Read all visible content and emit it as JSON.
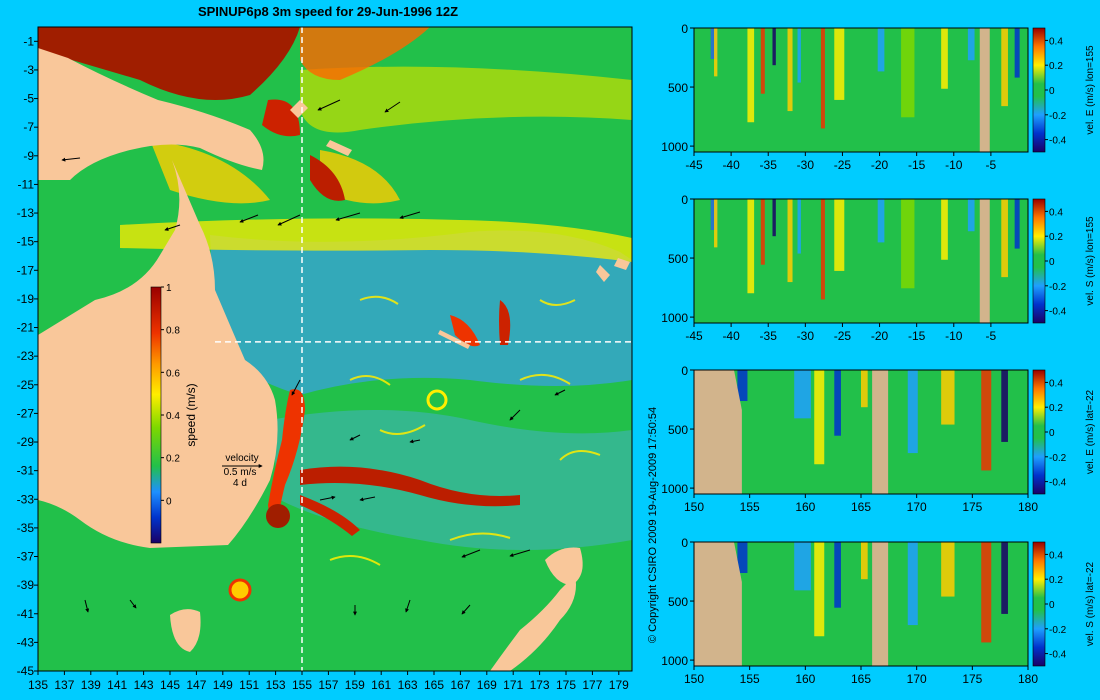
{
  "title": "SPINUP6p8 3m speed for 29-Jun-1996 12Z",
  "copyright": "© Copyright CSIRO 2009  19-Aug-2009 17:50:54",
  "colors": {
    "background": "#00ccff",
    "land": "#f9c79a",
    "mask": "#d2b48c",
    "ocean_base": "#22c04a",
    "strong_current": "#a01e00"
  },
  "map": {
    "x_ticks": [
      "135",
      "137",
      "139",
      "141",
      "143",
      "145",
      "147",
      "149",
      "151",
      "153",
      "155",
      "157",
      "159",
      "161",
      "163",
      "165",
      "167",
      "169",
      "171",
      "173",
      "175",
      "177",
      "179"
    ],
    "y_ticks": [
      "-1",
      "-3",
      "-5",
      "-7",
      "-9",
      "-11",
      "-13",
      "-15",
      "-17",
      "-19",
      "-21",
      "-23",
      "-25",
      "-27",
      "-29",
      "-31",
      "-33",
      "-35",
      "-37",
      "-39",
      "-41",
      "-43",
      "-45"
    ],
    "lon_range": [
      135,
      180
    ],
    "lat_range": [
      -45,
      0
    ],
    "section_lon": 155,
    "section_lat": -22,
    "colorbar": {
      "label": "speed (m/s)",
      "ticks": [
        "1",
        "0.8",
        "0.6",
        "0.4",
        "0.2",
        "0"
      ],
      "range": [
        -0.2,
        1
      ]
    },
    "velocity_key": {
      "title": "velocity",
      "speed": "0.5 m/s",
      "days": "4 d"
    }
  },
  "panels": [
    {
      "id": "lon155-east",
      "label": "vel. E (m/s) lon=155",
      "x_ticks": [
        "-45",
        "-40",
        "-35",
        "-30",
        "-25",
        "-20",
        "-15",
        "-10",
        "-5"
      ],
      "x_range": [
        -45,
        0
      ],
      "y_ticks": [
        "0",
        "500",
        "1000"
      ],
      "y_range": [
        0,
        1050
      ],
      "cb_ticks": [
        "0.4",
        "0.2",
        "0",
        "-0.2",
        "-0.4"
      ]
    },
    {
      "id": "lon155-south",
      "label": "vel. S (m/s) lon=155",
      "x_ticks": [
        "-45",
        "-40",
        "-35",
        "-30",
        "-25",
        "-20",
        "-15",
        "-10",
        "-5"
      ],
      "x_range": [
        -45,
        0
      ],
      "y_ticks": [
        "0",
        "500",
        "1000"
      ],
      "y_range": [
        0,
        1050
      ],
      "cb_ticks": [
        "0.4",
        "0.2",
        "0",
        "-0.2",
        "-0.4"
      ]
    },
    {
      "id": "lat-22-east",
      "label": "vel. E (m/s) lat=-22",
      "x_ticks": [
        "150",
        "155",
        "160",
        "165",
        "170",
        "175",
        "180"
      ],
      "x_range": [
        150,
        180
      ],
      "y_ticks": [
        "0",
        "500",
        "1000"
      ],
      "y_range": [
        0,
        1050
      ],
      "cb_ticks": [
        "0.4",
        "0.2",
        "0",
        "-0.2",
        "-0.4"
      ]
    },
    {
      "id": "lat-22-south",
      "label": "vel. S (m/s) lat=-22",
      "x_ticks": [
        "150",
        "155",
        "160",
        "165",
        "170",
        "175",
        "180"
      ],
      "x_range": [
        150,
        180
      ],
      "y_ticks": [
        "0",
        "500",
        "1000"
      ],
      "y_range": [
        0,
        1050
      ],
      "cb_ticks": [
        "0.4",
        "0.2",
        "0",
        "-0.2",
        "-0.4"
      ]
    }
  ]
}
